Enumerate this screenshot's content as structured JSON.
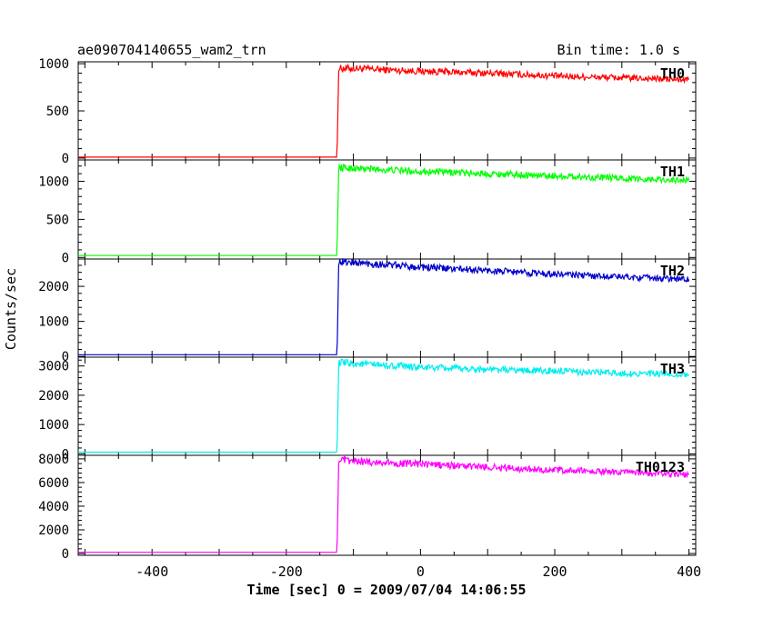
{
  "chart_data": [
    {
      "type": "line",
      "title": "ae090704140655_wam2_trn",
      "subtitle": "Bin time: 1.0 s",
      "xlabel": "Time [sec] 0 = 2009/07/04 14:06:55",
      "ylabel": "Counts/sec",
      "xlim": [
        -510,
        410
      ],
      "xticks": [
        -400,
        -200,
        0,
        200,
        400
      ],
      "panels": [
        {
          "name": "TH0",
          "color": "#ff0000",
          "ylim": [
            -20,
            1020
          ],
          "yticks": [
            0,
            500,
            1000
          ],
          "series": [
            {
              "name": "TH0",
              "x": [
                -510,
                -125,
                -124,
                -122,
                -100,
                0,
                100,
                200,
                300,
                400
              ],
              "values": [
                10,
                10,
                170,
                950,
                950,
                920,
                900,
                870,
                850,
                830
              ]
            }
          ]
        },
        {
          "name": "TH1",
          "color": "#00ff00",
          "ylim": [
            -20,
            1280
          ],
          "yticks": [
            0,
            500,
            1000
          ],
          "series": [
            {
              "name": "TH1",
              "x": [
                -510,
                -125,
                -124,
                -122,
                -100,
                0,
                100,
                200,
                300,
                400
              ],
              "values": [
                25,
                25,
                260,
                1180,
                1170,
                1130,
                1100,
                1070,
                1040,
                1010
              ]
            }
          ]
        },
        {
          "name": "TH2",
          "color": "#0000cc",
          "ylim": [
            -20,
            2780
          ],
          "yticks": [
            0,
            1000,
            2000
          ],
          "series": [
            {
              "name": "TH2",
              "x": [
                -510,
                -125,
                -124,
                -122,
                -100,
                0,
                100,
                200,
                300,
                400
              ],
              "values": [
                50,
                50,
                400,
                2700,
                2680,
                2550,
                2450,
                2350,
                2270,
                2200
              ]
            }
          ]
        },
        {
          "name": "TH3",
          "color": "#00eeee",
          "ylim": [
            -50,
            3300
          ],
          "yticks": [
            0,
            1000,
            2000,
            3000
          ],
          "series": [
            {
              "name": "TH3",
              "x": [
                -510,
                -125,
                -124,
                -122,
                -100,
                0,
                100,
                200,
                300,
                400
              ],
              "values": [
                60,
                60,
                500,
                3120,
                3080,
                2950,
                2880,
                2820,
                2750,
                2700
              ]
            }
          ]
        },
        {
          "name": "TH0123",
          "color": "#ff00ff",
          "ylim": [
            -150,
            8300
          ],
          "yticks": [
            0,
            2000,
            4000,
            6000,
            8000
          ],
          "series": [
            {
              "name": "TH0123",
              "x": [
                -510,
                -125,
                -124,
                -122,
                -100,
                0,
                100,
                200,
                300,
                400
              ],
              "values": [
                100,
                100,
                1300,
                7900,
                7800,
                7550,
                7300,
                7050,
                6850,
                6650
              ]
            }
          ]
        }
      ]
    }
  ]
}
